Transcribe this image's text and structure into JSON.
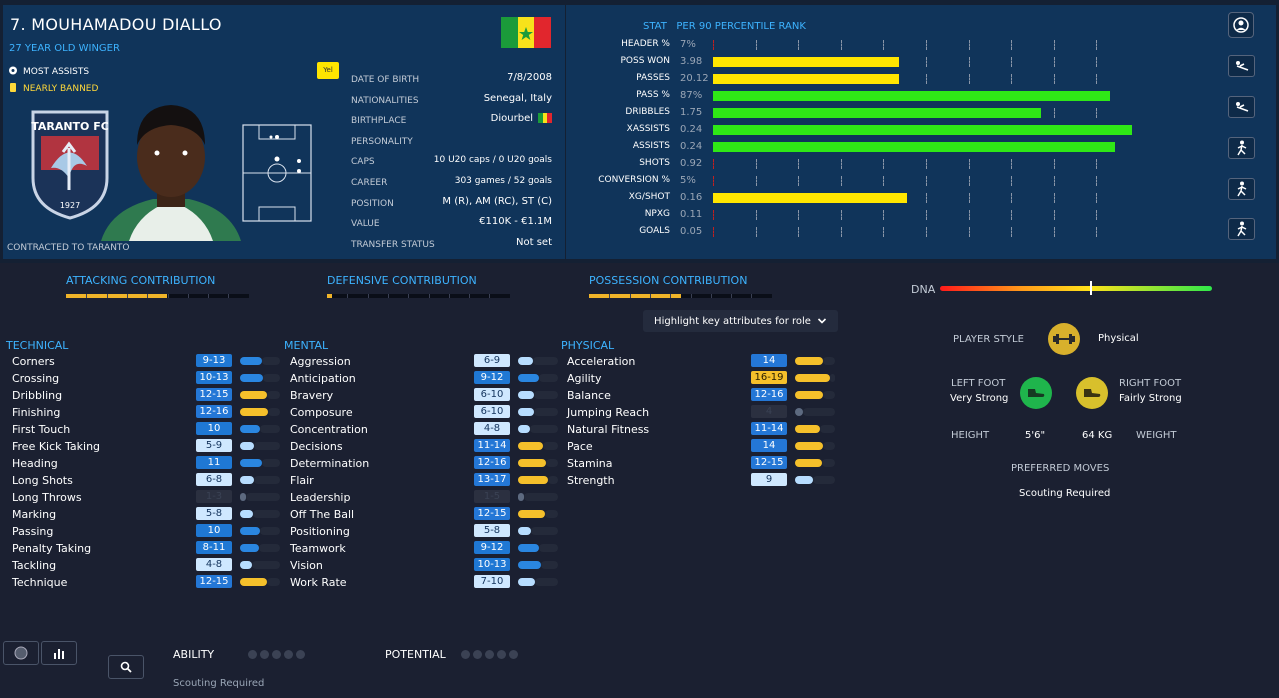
{
  "player": {
    "name": "7. MOUHAMADOU DIALLO",
    "subtitle": "27 YEAR OLD WINGER",
    "notes": [
      "MOST ASSISTS",
      "NEARLY BANNED"
    ],
    "yel_badge": "Yel",
    "club_text": "TARANTO FC",
    "club_year": "1927",
    "contract": "CONTRACTED TO TARANTO"
  },
  "details": [
    {
      "label": "DATE OF BIRTH",
      "value": "7/8/2008"
    },
    {
      "label": "NATIONALITIES",
      "value": "Senegal, Italy"
    },
    {
      "label": "BIRTHPLACE",
      "value": "Diourbel"
    },
    {
      "label": "PERSONALITY",
      "value": ""
    },
    {
      "label": "CAPS",
      "value": "10 U20 caps / 0 U20 goals"
    },
    {
      "label": "CAREER",
      "value": "303 games /  52  goals"
    },
    {
      "label": "POSITION",
      "value": "M (R), AM (RC), ST (C)"
    },
    {
      "label": "VALUE",
      "value": "€110K - €1.1M"
    },
    {
      "label": "TRANSFER STATUS",
      "value": "Not set"
    }
  ],
  "stats_header": {
    "stat": "STAT",
    "per90": "PER 90",
    "rank": "PERCENTILE RANK"
  },
  "stats": [
    {
      "label": "HEADER %",
      "value": "7%",
      "pct": 0,
      "color": "#d00"
    },
    {
      "label": "POSS WON",
      "value": "3.98",
      "pct": 43,
      "color": "#ffe600"
    },
    {
      "label": "PASSES",
      "value": "20.12",
      "pct": 43,
      "color": "#ffe600"
    },
    {
      "label": "PASS %",
      "value": "87%",
      "pct": 92,
      "color": "#2fe816"
    },
    {
      "label": "DRIBBLES",
      "value": "1.75",
      "pct": 76,
      "color": "#2fe816"
    },
    {
      "label": "XASSISTS",
      "value": "0.24",
      "pct": 97,
      "color": "#2fe816"
    },
    {
      "label": "ASSISTS",
      "value": "0.24",
      "pct": 93,
      "color": "#2fe816"
    },
    {
      "label": "SHOTS",
      "value": "0.92",
      "pct": 0,
      "color": "#d00"
    },
    {
      "label": "CONVERSION %",
      "value": "5%",
      "pct": 0,
      "color": "#d00"
    },
    {
      "label": "XG/SHOT",
      "value": "0.16",
      "pct": 45,
      "color": "#ffe600"
    },
    {
      "label": "NPXG",
      "value": "0.11",
      "pct": 0,
      "color": "#d00"
    },
    {
      "label": "GOALS",
      "value": "0.05",
      "pct": 0,
      "color": "#d00"
    }
  ],
  "contributions": [
    {
      "label": "ATTACKING CONTRIBUTION",
      "level": 0.55
    },
    {
      "label": "DEFENSIVE CONTRIBUTION",
      "level": 0.03
    },
    {
      "label": "POSSESSION CONTRIBUTION",
      "level": 0.5
    }
  ],
  "dna_label": "DNA",
  "dna_level": 0.55,
  "highlight_label": "Highlight key attributes for role",
  "columns": [
    {
      "title": "TECHNICAL",
      "attrs": [
        {
          "n": "Corners",
          "v": "9-13"
        },
        {
          "n": "Crossing",
          "v": "10-13"
        },
        {
          "n": "Dribbling",
          "v": "12-15"
        },
        {
          "n": "Finishing",
          "v": "12-16"
        },
        {
          "n": "First Touch",
          "v": "10"
        },
        {
          "n": "Free Kick Taking",
          "v": "5-9"
        },
        {
          "n": "Heading",
          "v": "11"
        },
        {
          "n": "Long Shots",
          "v": "6-8"
        },
        {
          "n": "Long Throws",
          "v": "1-3"
        },
        {
          "n": "Marking",
          "v": "5-8"
        },
        {
          "n": "Passing",
          "v": "10"
        },
        {
          "n": "Penalty Taking",
          "v": "8-11"
        },
        {
          "n": "Tackling",
          "v": "4-8"
        },
        {
          "n": "Technique",
          "v": "12-15"
        }
      ]
    },
    {
      "title": "MENTAL",
      "attrs": [
        {
          "n": "Aggression",
          "v": "6-9"
        },
        {
          "n": "Anticipation",
          "v": "9-12"
        },
        {
          "n": "Bravery",
          "v": "6-10"
        },
        {
          "n": "Composure",
          "v": "6-10"
        },
        {
          "n": "Concentration",
          "v": "4-8"
        },
        {
          "n": "Decisions",
          "v": "11-14"
        },
        {
          "n": "Determination",
          "v": "12-16"
        },
        {
          "n": "Flair",
          "v": "13-17"
        },
        {
          "n": "Leadership",
          "v": "1-5"
        },
        {
          "n": "Off The Ball",
          "v": "12-15"
        },
        {
          "n": "Positioning",
          "v": "5-8"
        },
        {
          "n": "Teamwork",
          "v": "9-12"
        },
        {
          "n": "Vision",
          "v": "10-13"
        },
        {
          "n": "Work Rate",
          "v": "7-10"
        }
      ]
    },
    {
      "title": "PHYSICAL",
      "attrs": [
        {
          "n": "Acceleration",
          "v": "14"
        },
        {
          "n": "Agility",
          "v": "16-19"
        },
        {
          "n": "Balance",
          "v": "12-16"
        },
        {
          "n": "Jumping Reach",
          "v": "4"
        },
        {
          "n": "Natural Fitness",
          "v": "11-14"
        },
        {
          "n": "Pace",
          "v": "14"
        },
        {
          "n": "Stamina",
          "v": "12-15"
        },
        {
          "n": "Strength",
          "v": "9"
        }
      ]
    }
  ],
  "style": {
    "player_style_label": "PLAYER STYLE",
    "player_style_value": "Physical",
    "left_foot_label": "LEFT FOOT",
    "left_foot_value": "Very Strong",
    "right_foot_label": "RIGHT FOOT",
    "right_foot_value": "Fairly Strong",
    "height_label": "HEIGHT",
    "height_value": "5'6\"",
    "weight_value": "64 KG",
    "weight_label": "WEIGHT",
    "moves_label": "PREFERRED MOVES",
    "moves_value": "Scouting Required"
  },
  "bottom": {
    "ability_label": "ABILITY",
    "potential_label": "POTENTIAL",
    "scouting": "Scouting Required"
  },
  "colors": {
    "accent": "#3db3ff",
    "yellow": "#ffc42b",
    "gold_icon": "#d8b02c",
    "green_icon": "#1fb54c"
  }
}
